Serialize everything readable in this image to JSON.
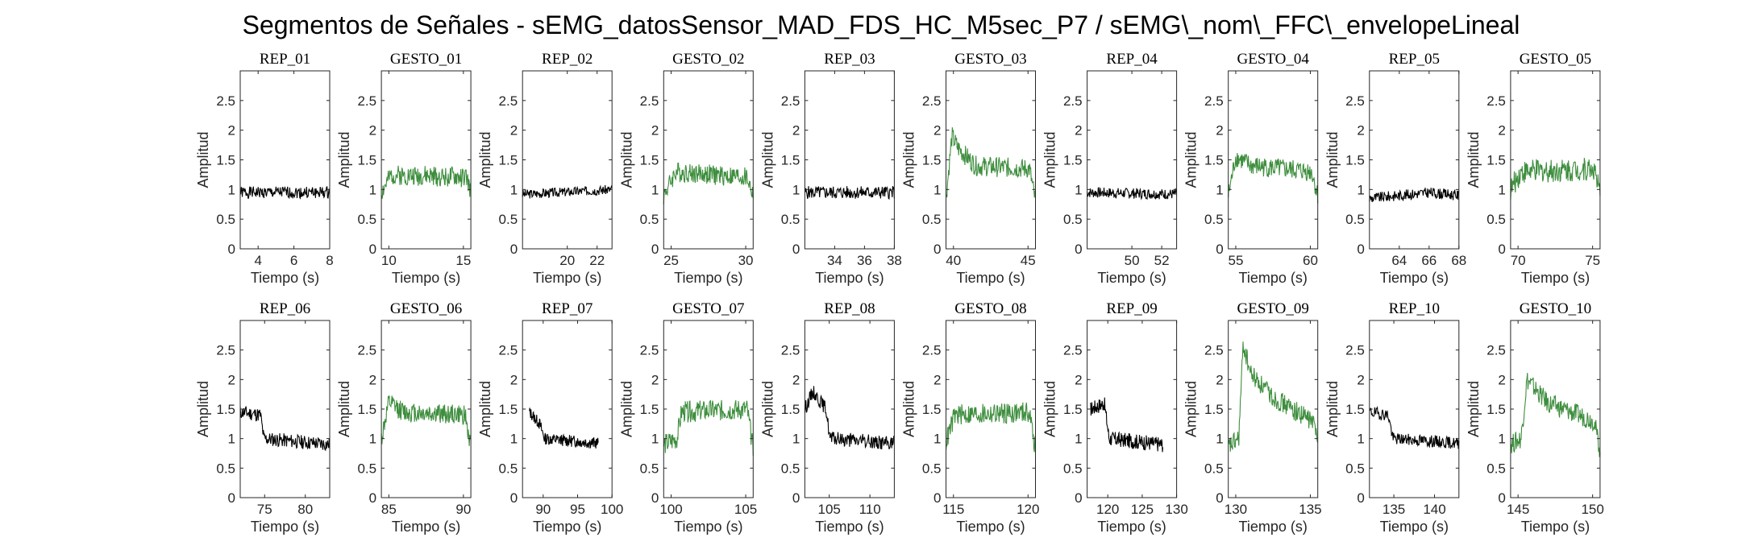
{
  "figure": {
    "title": "Segmentos de Señales - sEMG_datosSensor_MAD_FDS_HC_M5sec_P7 / sEMG\\_nom\\_FFC\\_envelopeLineal"
  },
  "colors": {
    "rep": "#000000",
    "gesto": "#3e8e3e",
    "axis": "#262626"
  },
  "chart_data": [
    {
      "type": "line",
      "title": "REP_01",
      "kind": "rep",
      "xlabel": "Tiempo (s)",
      "ylabel": "Amplitud",
      "xlim": [
        3,
        8
      ],
      "ylim": [
        0,
        3
      ],
      "xticks": [
        4,
        6,
        8
      ],
      "yticks": [
        0,
        0.5,
        1,
        1.5,
        2,
        2.5
      ],
      "profile": [
        [
          3,
          0.95
        ],
        [
          8,
          0.95
        ]
      ],
      "noise": 0.1,
      "seed": 1
    },
    {
      "type": "line",
      "title": "GESTO_01",
      "kind": "gesto",
      "xlabel": "Tiempo (s)",
      "ylabel": "Amplitud",
      "xlim": [
        9.5,
        15.5
      ],
      "ylim": [
        0,
        3
      ],
      "xticks": [
        10,
        15
      ],
      "yticks": [
        0,
        0.5,
        1,
        1.5,
        2,
        2.5
      ],
      "profile": [
        [
          9.5,
          0.95
        ],
        [
          10.2,
          1.25
        ],
        [
          15.2,
          1.2
        ],
        [
          15.5,
          0.95
        ]
      ],
      "noise": 0.17,
      "seed": 2
    },
    {
      "type": "line",
      "title": "REP_02",
      "kind": "rep",
      "xlabel": "Tiempo (s)",
      "ylabel": "Amplitud",
      "xlim": [
        17,
        23
      ],
      "ylim": [
        0,
        3
      ],
      "xticks": [
        20,
        22
      ],
      "yticks": [
        0,
        0.5,
        1,
        1.5,
        2,
        2.5
      ],
      "profile": [
        [
          17,
          0.92
        ],
        [
          23,
          1.0
        ]
      ],
      "noise": 0.08,
      "seed": 3
    },
    {
      "type": "line",
      "title": "GESTO_02",
      "kind": "gesto",
      "xlabel": "Tiempo (s)",
      "ylabel": "Amplitud",
      "xlim": [
        24.5,
        30.5
      ],
      "ylim": [
        0,
        3
      ],
      "xticks": [
        25,
        30
      ],
      "yticks": [
        0,
        0.5,
        1,
        1.5,
        2,
        2.5
      ],
      "profile": [
        [
          24.5,
          0.9
        ],
        [
          25.3,
          1.3
        ],
        [
          30.1,
          1.2
        ],
        [
          30.5,
          0.9
        ]
      ],
      "noise": 0.17,
      "seed": 4
    },
    {
      "type": "line",
      "title": "REP_03",
      "kind": "rep",
      "xlabel": "Tiempo (s)",
      "ylabel": "Amplitud",
      "xlim": [
        32,
        38
      ],
      "ylim": [
        0,
        3
      ],
      "xticks": [
        34,
        36,
        38
      ],
      "yticks": [
        0,
        0.5,
        1,
        1.5,
        2,
        2.5
      ],
      "profile": [
        [
          32,
          0.95
        ],
        [
          38,
          0.95
        ]
      ],
      "noise": 0.11,
      "seed": 5
    },
    {
      "type": "line",
      "title": "GESTO_03",
      "kind": "gesto",
      "xlabel": "Tiempo (s)",
      "ylabel": "Amplitud",
      "xlim": [
        39.5,
        45.5
      ],
      "ylim": [
        0,
        3
      ],
      "xticks": [
        40,
        45
      ],
      "yticks": [
        0,
        0.5,
        1,
        1.5,
        2,
        2.5
      ],
      "profile": [
        [
          39.5,
          0.85
        ],
        [
          39.9,
          1.9
        ],
        [
          40.3,
          1.7
        ],
        [
          41.5,
          1.4
        ],
        [
          45.1,
          1.35
        ],
        [
          45.5,
          0.8
        ]
      ],
      "noise": 0.17,
      "seed": 6
    },
    {
      "type": "line",
      "title": "REP_04",
      "kind": "rep",
      "xlabel": "Tiempo (s)",
      "ylabel": "Amplitud",
      "xlim": [
        47,
        53
      ],
      "ylim": [
        0,
        3
      ],
      "xticks": [
        50,
        52
      ],
      "yticks": [
        0,
        0.5,
        1,
        1.5,
        2,
        2.5
      ],
      "profile": [
        [
          47,
          0.95
        ],
        [
          53,
          0.92
        ]
      ],
      "noise": 0.09,
      "seed": 7
    },
    {
      "type": "line",
      "title": "GESTO_04",
      "kind": "gesto",
      "xlabel": "Tiempo (s)",
      "ylabel": "Amplitud",
      "xlim": [
        54.5,
        60.5
      ],
      "ylim": [
        0,
        3
      ],
      "xticks": [
        55,
        60
      ],
      "yticks": [
        0,
        0.5,
        1,
        1.5,
        2,
        2.5
      ],
      "profile": [
        [
          54.5,
          0.9
        ],
        [
          55,
          1.55
        ],
        [
          56,
          1.4
        ],
        [
          60.1,
          1.3
        ],
        [
          60.5,
          0.9
        ]
      ],
      "noise": 0.17,
      "seed": 8
    },
    {
      "type": "line",
      "title": "REP_05",
      "kind": "rep",
      "xlabel": "Tiempo (s)",
      "ylabel": "Amplitud",
      "xlim": [
        62,
        68
      ],
      "ylim": [
        0,
        3
      ],
      "xticks": [
        64,
        66,
        68
      ],
      "yticks": [
        0,
        0.5,
        1,
        1.5,
        2,
        2.5
      ],
      "profile": [
        [
          62,
          0.85
        ],
        [
          66,
          0.95
        ],
        [
          68,
          0.9
        ]
      ],
      "noise": 0.09,
      "seed": 9
    },
    {
      "type": "line",
      "title": "GESTO_05",
      "kind": "gesto",
      "xlabel": "Tiempo (s)",
      "ylabel": "Amplitud",
      "xlim": [
        69.5,
        75.5
      ],
      "ylim": [
        0,
        3
      ],
      "xticks": [
        70,
        75
      ],
      "yticks": [
        0,
        0.5,
        1,
        1.5,
        2,
        2.5
      ],
      "profile": [
        [
          69.5,
          1.0
        ],
        [
          70.2,
          1.3
        ],
        [
          75.1,
          1.35
        ],
        [
          75.5,
          0.9
        ]
      ],
      "noise": 0.2,
      "seed": 10
    },
    {
      "type": "line",
      "title": "REP_06",
      "kind": "rep",
      "xlabel": "Tiempo (s)",
      "ylabel": "Amplitud",
      "xlim": [
        72,
        83
      ],
      "ylim": [
        0,
        3
      ],
      "xticks": [
        75,
        80
      ],
      "yticks": [
        0,
        0.5,
        1,
        1.5,
        2,
        2.5
      ],
      "profile": [
        [
          72,
          1.45
        ],
        [
          74.5,
          1.4
        ],
        [
          74.9,
          1.0
        ],
        [
          83,
          0.9
        ]
      ],
      "noise": 0.12,
      "seed": 11
    },
    {
      "type": "line",
      "title": "GESTO_06",
      "kind": "gesto",
      "xlabel": "Tiempo (s)",
      "ylabel": "Amplitud",
      "xlim": [
        84.5,
        90.5
      ],
      "ylim": [
        0,
        3
      ],
      "xticks": [
        85,
        90
      ],
      "yticks": [
        0,
        0.5,
        1,
        1.5,
        2,
        2.5
      ],
      "profile": [
        [
          84.5,
          1.0
        ],
        [
          85,
          1.6
        ],
        [
          86,
          1.45
        ],
        [
          90.1,
          1.4
        ],
        [
          90.5,
          0.85
        ]
      ],
      "noise": 0.17,
      "seed": 12
    },
    {
      "type": "line",
      "title": "REP_07",
      "kind": "rep",
      "xlabel": "Tiempo (s)",
      "ylabel": "Amplitud",
      "xlim": [
        87,
        100
      ],
      "ylim": [
        0,
        3
      ],
      "xticks": [
        90,
        95,
        100
      ],
      "yticks": [
        0,
        0.5,
        1,
        1.5,
        2,
        2.5
      ],
      "profile": [
        [
          88,
          1.45
        ],
        [
          89.5,
          1.25
        ],
        [
          90.2,
          1.0
        ],
        [
          98,
          0.92
        ]
      ],
      "noise": 0.1,
      "seed": 13
    },
    {
      "type": "line",
      "title": "GESTO_07",
      "kind": "gesto",
      "xlabel": "Tiempo (s)",
      "ylabel": "Amplitud",
      "xlim": [
        99.5,
        105.5
      ],
      "ylim": [
        0,
        3
      ],
      "xticks": [
        100,
        105
      ],
      "yticks": [
        0,
        0.5,
        1,
        1.5,
        2,
        2.5
      ],
      "profile": [
        [
          99.5,
          0.9
        ],
        [
          100.4,
          1.0
        ],
        [
          100.7,
          1.45
        ],
        [
          105.1,
          1.5
        ],
        [
          105.5,
          0.8
        ]
      ],
      "noise": 0.18,
      "seed": 14
    },
    {
      "type": "line",
      "title": "REP_08",
      "kind": "rep",
      "xlabel": "Tiempo (s)",
      "ylabel": "Amplitud",
      "xlim": [
        102,
        113
      ],
      "ylim": [
        0,
        3
      ],
      "xticks": [
        105,
        110
      ],
      "yticks": [
        0,
        0.5,
        1,
        1.5,
        2,
        2.5
      ],
      "profile": [
        [
          102,
          1.5
        ],
        [
          103,
          1.8
        ],
        [
          104.6,
          1.5
        ],
        [
          105.1,
          1.0
        ],
        [
          113,
          0.92
        ]
      ],
      "noise": 0.12,
      "seed": 15
    },
    {
      "type": "line",
      "title": "GESTO_08",
      "kind": "gesto",
      "xlabel": "Tiempo (s)",
      "ylabel": "Amplitud",
      "xlim": [
        114.5,
        120.5
      ],
      "ylim": [
        0,
        3
      ],
      "xticks": [
        115,
        120
      ],
      "yticks": [
        0,
        0.5,
        1,
        1.5,
        2,
        2.5
      ],
      "profile": [
        [
          114.5,
          0.95
        ],
        [
          115.1,
          1.4
        ],
        [
          120.1,
          1.45
        ],
        [
          120.5,
          0.8
        ]
      ],
      "noise": 0.18,
      "seed": 16
    },
    {
      "type": "line",
      "title": "REP_09",
      "kind": "rep",
      "xlabel": "Tiempo (s)",
      "ylabel": "Amplitud",
      "xlim": [
        117,
        130
      ],
      "ylim": [
        0,
        3
      ],
      "xticks": [
        120,
        125,
        130
      ],
      "yticks": [
        0,
        0.5,
        1,
        1.5,
        2,
        2.5
      ],
      "profile": [
        [
          117.5,
          1.5
        ],
        [
          119.5,
          1.6
        ],
        [
          120.2,
          1.0
        ],
        [
          128,
          0.9
        ]
      ],
      "noise": 0.13,
      "seed": 17
    },
    {
      "type": "line",
      "title": "GESTO_09",
      "kind": "gesto",
      "xlabel": "Tiempo (s)",
      "ylabel": "Amplitud",
      "xlim": [
        129.5,
        135.5
      ],
      "ylim": [
        0,
        3
      ],
      "xticks": [
        130,
        135
      ],
      "yticks": [
        0,
        0.5,
        1,
        1.5,
        2,
        2.5
      ],
      "profile": [
        [
          129.5,
          0.85
        ],
        [
          130.2,
          1.0
        ],
        [
          130.5,
          2.6
        ],
        [
          131,
          2.1
        ],
        [
          132.5,
          1.7
        ],
        [
          135.1,
          1.3
        ],
        [
          135.5,
          1.1
        ]
      ],
      "noise": 0.17,
      "seed": 18
    },
    {
      "type": "line",
      "title": "REP_10",
      "kind": "rep",
      "xlabel": "Tiempo (s)",
      "ylabel": "Amplitud",
      "xlim": [
        132,
        143
      ],
      "ylim": [
        0,
        3
      ],
      "xticks": [
        135,
        140
      ],
      "yticks": [
        0,
        0.5,
        1,
        1.5,
        2,
        2.5
      ],
      "profile": [
        [
          132,
          1.45
        ],
        [
          134.3,
          1.4
        ],
        [
          134.9,
          1.0
        ],
        [
          143,
          0.92
        ]
      ],
      "noise": 0.1,
      "seed": 19
    },
    {
      "type": "line",
      "title": "GESTO_10",
      "kind": "gesto",
      "xlabel": "Tiempo (s)",
      "ylabel": "Amplitud",
      "xlim": [
        144.5,
        150.5
      ],
      "ylim": [
        0,
        3
      ],
      "xticks": [
        145,
        150
      ],
      "yticks": [
        0,
        0.5,
        1,
        1.5,
        2,
        2.5
      ],
      "profile": [
        [
          144.5,
          0.9
        ],
        [
          145.2,
          1.0
        ],
        [
          145.6,
          2.0
        ],
        [
          147,
          1.6
        ],
        [
          150.1,
          1.3
        ],
        [
          150.5,
          0.8
        ]
      ],
      "noise": 0.17,
      "seed": 20
    }
  ]
}
